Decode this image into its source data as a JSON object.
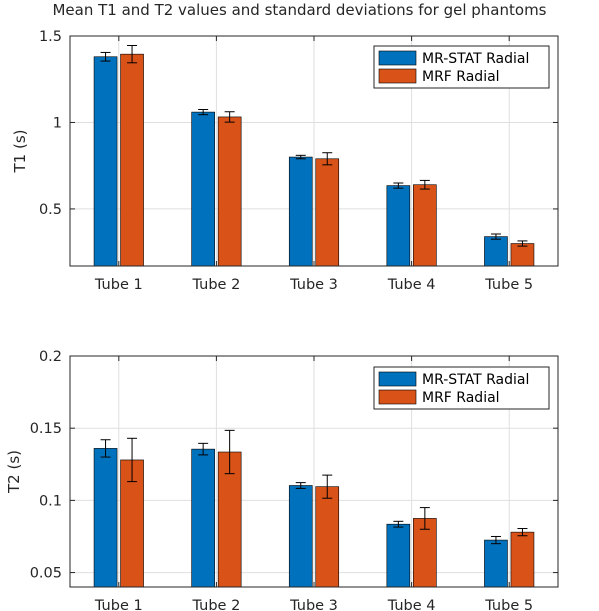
{
  "title": "Mean T1 and T2 values and standard deviations for gel phantoms",
  "colors": {
    "series1": "#0072BD",
    "series2": "#D95319",
    "grid": "#dfdfdf",
    "axis": "#262626"
  },
  "chart_data": [
    {
      "type": "bar",
      "categories": [
        "Tube 1",
        "Tube 2",
        "Tube 3",
        "Tube 4",
        "Tube 5"
      ],
      "ylabel": "T1 (s)",
      "ylim": [
        0.17,
        1.5
      ],
      "yticks": [
        0.5,
        1,
        1.5
      ],
      "ytick_labels": [
        "0.5",
        "1",
        "1.5"
      ],
      "grid": true,
      "legend_position": "top-right",
      "series": [
        {
          "name": "MR-STAT Radial",
          "values": [
            1.38,
            1.06,
            0.8,
            0.635,
            0.34
          ],
          "errors": [
            0.025,
            0.015,
            0.01,
            0.015,
            0.015
          ]
        },
        {
          "name": "MRF Radial",
          "values": [
            1.395,
            1.032,
            0.79,
            0.64,
            0.3
          ],
          "errors": [
            0.05,
            0.03,
            0.035,
            0.025,
            0.015
          ]
        }
      ]
    },
    {
      "type": "bar",
      "categories": [
        "Tube 1",
        "Tube 2",
        "Tube 3",
        "Tube 4",
        "Tube 5"
      ],
      "ylabel": "T2 (s)",
      "ylim": [
        0.04,
        0.2
      ],
      "yticks": [
        0.05,
        0.1,
        0.15,
        0.2
      ],
      "ytick_labels": [
        "0.05",
        "0.1",
        "0.15",
        "0.2"
      ],
      "grid": true,
      "legend_position": "top-right",
      "series": [
        {
          "name": "MR-STAT Radial",
          "values": [
            0.136,
            0.1355,
            0.1103,
            0.0835,
            0.0725
          ],
          "errors": [
            0.006,
            0.004,
            0.002,
            0.002,
            0.0025
          ]
        },
        {
          "name": "MRF Radial",
          "values": [
            0.128,
            0.1335,
            0.1095,
            0.0875,
            0.078
          ],
          "errors": [
            0.015,
            0.015,
            0.008,
            0.0075,
            0.0025
          ]
        }
      ]
    }
  ]
}
